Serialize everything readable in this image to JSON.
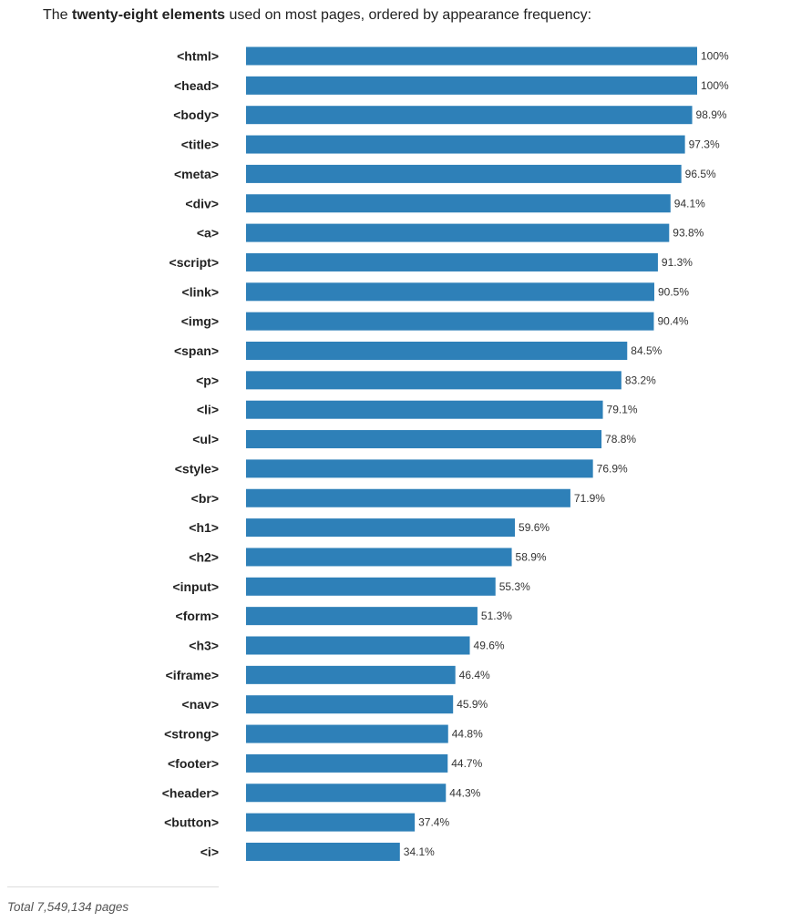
{
  "title": {
    "prefix": "The ",
    "bold": "twenty-eight elements",
    "suffix": " used on most pages, ordered by appearance frequency:"
  },
  "footer": {
    "note": "Total 7,549,134 pages"
  },
  "colors": {
    "bar": "#2e80b8",
    "label": "#222222",
    "value_label": "#333333"
  },
  "chart_data": {
    "type": "bar",
    "orientation": "horizontal",
    "title": "The twenty-eight elements used on most pages, ordered by appearance frequency:",
    "xlabel": "",
    "ylabel": "",
    "xlim": [
      0,
      100
    ],
    "grid": false,
    "categories": [
      "<html>",
      "<head>",
      "<body>",
      "<title>",
      "<meta>",
      "<div>",
      "<a>",
      "<script>",
      "<link>",
      "<img>",
      "<span>",
      "<p>",
      "<li>",
      "<ul>",
      "<style>",
      "<br>",
      "<h1>",
      "<h2>",
      "<input>",
      "<form>",
      "<h3>",
      "<iframe>",
      "<nav>",
      "<strong>",
      "<footer>",
      "<header>",
      "<button>",
      "<i>"
    ],
    "values": [
      100,
      100,
      98.9,
      97.3,
      96.5,
      94.1,
      93.8,
      91.3,
      90.5,
      90.4,
      84.5,
      83.2,
      79.1,
      78.8,
      76.9,
      71.9,
      59.6,
      58.9,
      55.3,
      51.3,
      49.6,
      46.4,
      45.9,
      44.8,
      44.7,
      44.3,
      37.4,
      34.1
    ],
    "value_labels": [
      "100%",
      "100%",
      "98.9%",
      "97.3%",
      "96.5%",
      "94.1%",
      "93.8%",
      "91.3%",
      "90.5%",
      "90.4%",
      "84.5%",
      "83.2%",
      "79.1%",
      "78.8%",
      "76.9%",
      "71.9%",
      "59.6%",
      "58.9%",
      "55.3%",
      "51.3%",
      "49.6%",
      "46.4%",
      "45.9%",
      "44.8%",
      "44.7%",
      "44.3%",
      "37.4%",
      "34.1%"
    ]
  }
}
